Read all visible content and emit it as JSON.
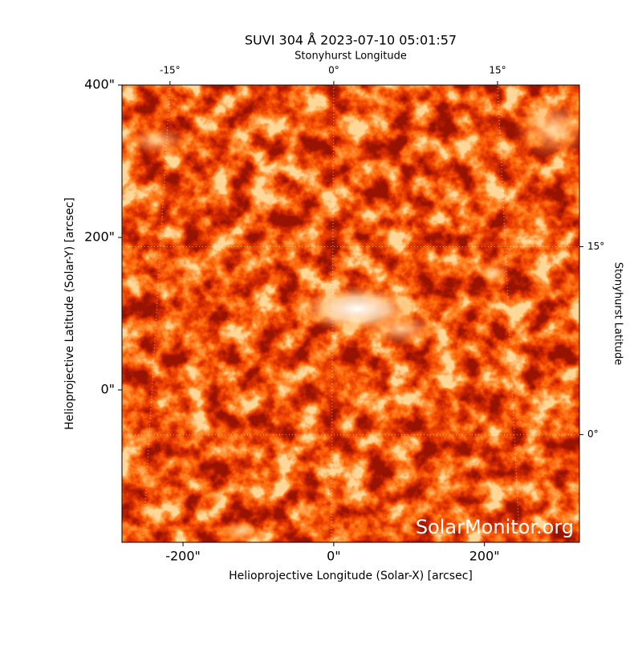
{
  "chart_data": {
    "type": "image",
    "title": "SUVI 304 Å 2023-07-10 05:01:57",
    "xlabel": "Helioprojective Longitude (Solar-X) [arcsec]",
    "ylabel": "Helioprojective Latitude (Solar-Y) [arcsec]",
    "x2label": "Stonyhurst Longitude",
    "y2label": "Stonyhurst Latitude",
    "watermark": "SolarMonitor.org",
    "xlim": [
      -281,
      326
    ],
    "ylim": [
      -200,
      400
    ],
    "xticks": [
      {
        "value": -200,
        "label": "-200\""
      },
      {
        "value": 0,
        "label": "0\""
      },
      {
        "value": 200,
        "label": "200\""
      }
    ],
    "yticks": [
      {
        "value": 0,
        "label": "0\""
      },
      {
        "value": 200,
        "label": "200\""
      },
      {
        "value": 400,
        "label": "400\""
      }
    ],
    "x2lim": [
      -19.4,
      22.5
    ],
    "x2ticks": [
      {
        "value": -15,
        "label": "-15°"
      },
      {
        "value": 0,
        "label": "0°"
      },
      {
        "value": 15,
        "label": "15°"
      }
    ],
    "y2lim": [
      -8.6,
      27.9
    ],
    "y2ticks": [
      {
        "value": 0,
        "label": "0°"
      },
      {
        "value": 15,
        "label": "15°"
      }
    ],
    "grid": true
  }
}
